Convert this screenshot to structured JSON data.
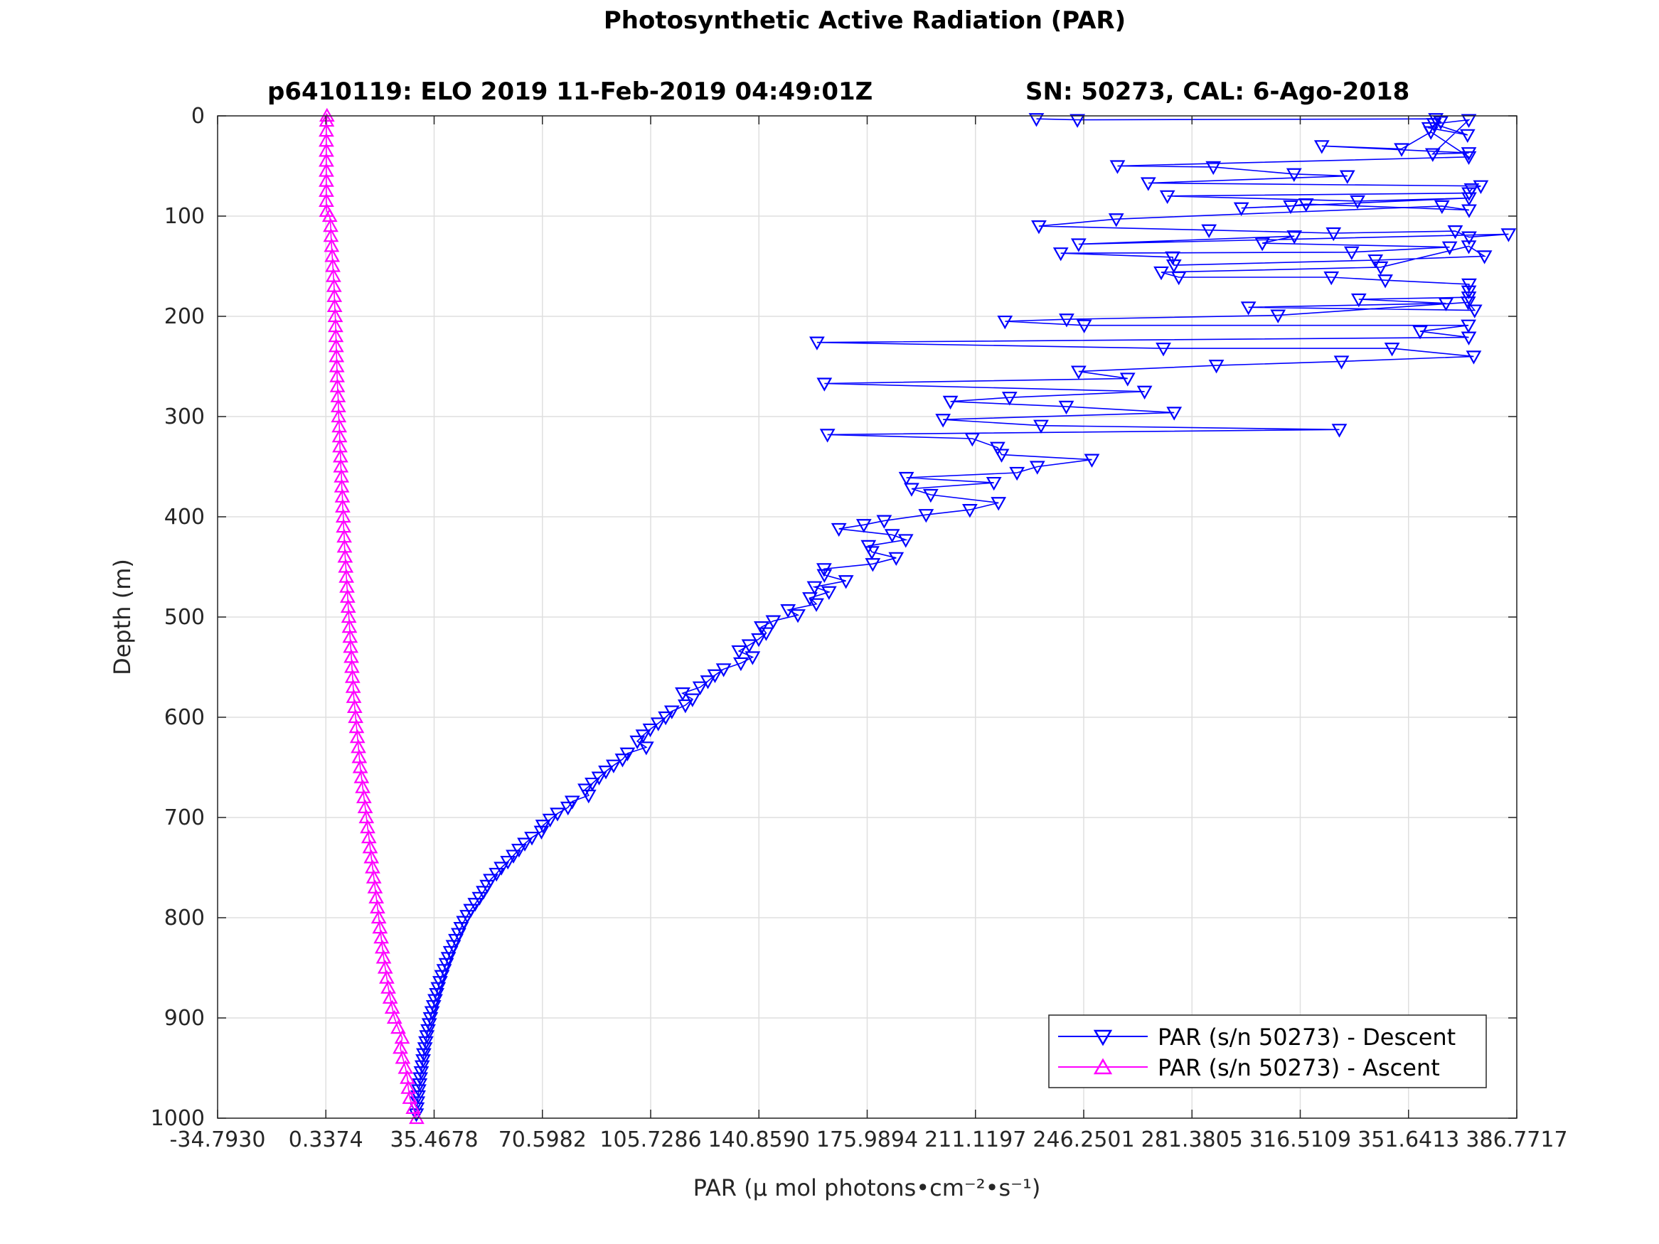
{
  "figure": {
    "title": "Photosynthetic Active Radiation (PAR)",
    "subtitle_left": "p6410119: ELO 2019 11-Feb-2019 04:49:01Z",
    "subtitle_right": "SN: 50273, CAL: 6-Ago-2018"
  },
  "chart_data": {
    "type": "line",
    "title": "Photosynthetic Active Radiation (PAR)",
    "subtitle": "p6410119: ELO 2019 11-Feb-2019 04:49:01Z        SN: 50273, CAL: 6-Ago-2018",
    "xlabel": "PAR (μ mol photons•cm⁻²•s⁻¹)",
    "ylabel": "Depth (m)",
    "xlim": [
      -34.793,
      386.7717
    ],
    "ylim": [
      0,
      1000
    ],
    "y_reversed": true,
    "grid": true,
    "legend_position": "bottom-right",
    "x_ticks": [
      "-34.7930",
      "0.3374",
      "35.4678",
      "70.5982",
      "105.7286",
      "140.8590",
      "175.9894",
      "211.1197",
      "246.2501",
      "281.3805",
      "316.5109",
      "351.6413",
      "386.7717"
    ],
    "x_tick_values": [
      -34.793,
      0.3374,
      35.4678,
      70.5982,
      105.7286,
      140.859,
      175.9894,
      211.1197,
      246.2501,
      281.3805,
      316.5109,
      351.6413,
      386.7717
    ],
    "y_ticks": [
      "0",
      "100",
      "200",
      "300",
      "400",
      "500",
      "600",
      "700",
      "800",
      "900",
      "1000"
    ],
    "y_tick_values": [
      0,
      100,
      200,
      300,
      400,
      500,
      600,
      700,
      800,
      900,
      1000
    ],
    "series": [
      {
        "name": "PAR (s/n 50273) - Descent",
        "color": "#0000ff",
        "marker": "triangle-down",
        "points": [
          [
            230.9,
            3
          ],
          [
            244.2,
            4
          ],
          [
            360.5,
            3
          ],
          [
            362.1,
            6
          ],
          [
            358.3,
            12
          ],
          [
            370.8,
            19
          ],
          [
            359.9,
            8
          ],
          [
            371.2,
            4
          ],
          [
            359.5,
            38
          ],
          [
            371.2,
            37
          ],
          [
            323.5,
            30
          ],
          [
            349.4,
            33
          ],
          [
            358.9,
            16
          ],
          [
            371.2,
            41
          ],
          [
            257.2,
            50
          ],
          [
            288.3,
            51
          ],
          [
            314.5,
            58
          ],
          [
            331.8,
            60
          ],
          [
            267.2,
            67
          ],
          [
            375.1,
            70
          ],
          [
            372.1,
            73
          ],
          [
            371.3,
            77
          ],
          [
            273.4,
            80
          ],
          [
            335.1,
            85
          ],
          [
            371.3,
            82
          ],
          [
            297.4,
            92
          ],
          [
            313.4,
            90
          ],
          [
            318.4,
            88
          ],
          [
            371.3,
            94
          ],
          [
            362.5,
            90
          ],
          [
            256.8,
            103
          ],
          [
            231.7,
            110
          ],
          [
            286.9,
            114
          ],
          [
            327.3,
            117
          ],
          [
            366.8,
            115
          ],
          [
            371.3,
            121
          ],
          [
            384.1,
            118
          ],
          [
            244.6,
            128
          ],
          [
            314.6,
            120
          ],
          [
            304.2,
            127
          ],
          [
            365.0,
            131
          ],
          [
            333.2,
            136
          ],
          [
            238.8,
            137
          ],
          [
            275.1,
            141
          ],
          [
            275.5,
            149
          ],
          [
            340.9,
            144
          ],
          [
            376.3,
            140
          ],
          [
            371.2,
            130
          ],
          [
            342.6,
            151
          ],
          [
            271.4,
            156
          ],
          [
            277.1,
            161
          ],
          [
            326.6,
            161
          ],
          [
            344.1,
            164
          ],
          [
            371.3,
            168
          ],
          [
            371.2,
            175
          ],
          [
            371.2,
            181
          ],
          [
            335.5,
            183
          ],
          [
            363.8,
            187
          ],
          [
            299.7,
            191
          ],
          [
            373.1,
            194
          ],
          [
            371.0,
            186
          ],
          [
            309.3,
            199
          ],
          [
            240.7,
            203
          ],
          [
            220.7,
            205
          ],
          [
            246.4,
            209
          ],
          [
            371.1,
            209
          ],
          [
            355.4,
            215
          ],
          [
            371.2,
            221
          ],
          [
            159.7,
            226
          ],
          [
            272.1,
            232
          ],
          [
            346.3,
            232
          ],
          [
            372.8,
            240
          ],
          [
            329.9,
            245
          ],
          [
            289.3,
            249
          ],
          [
            244.6,
            255
          ],
          [
            260.5,
            262
          ],
          [
            162.1,
            267
          ],
          [
            266.0,
            275
          ],
          [
            222.2,
            281
          ],
          [
            203.0,
            285
          ],
          [
            240.6,
            290
          ],
          [
            275.6,
            296
          ],
          [
            200.6,
            303
          ],
          [
            232.4,
            309
          ],
          [
            329.2,
            313
          ],
          [
            163.1,
            318
          ],
          [
            210.1,
            322
          ],
          [
            218.3,
            331
          ],
          [
            219.6,
            338
          ],
          [
            248.9,
            343
          ],
          [
            231.2,
            350
          ],
          [
            224.6,
            356
          ],
          [
            188.7,
            361
          ],
          [
            217.1,
            366
          ],
          [
            190.4,
            372
          ],
          [
            196.6,
            378
          ],
          [
            218.6,
            386
          ],
          [
            209.3,
            393
          ],
          [
            195.1,
            398
          ],
          [
            181.5,
            404
          ],
          [
            174.9,
            408
          ],
          [
            166.8,
            412
          ],
          [
            184.1,
            418
          ],
          [
            188.5,
            423
          ],
          [
            176.4,
            429
          ],
          [
            177.5,
            435
          ],
          [
            185.4,
            441
          ],
          [
            177.8,
            447
          ],
          [
            162.0,
            452
          ],
          [
            162.1,
            458
          ],
          [
            169.1,
            464
          ],
          [
            158.9,
            470
          ],
          [
            163.6,
            475
          ],
          [
            157.4,
            481
          ],
          [
            159.5,
            487
          ],
          [
            150.3,
            493
          ],
          [
            153.5,
            498
          ],
          [
            145.5,
            504
          ],
          [
            141.7,
            510
          ],
          [
            143.2,
            516
          ],
          [
            140.8,
            522
          ],
          [
            137.7,
            528
          ],
          [
            134.4,
            534
          ],
          [
            138.8,
            540
          ],
          [
            135.0,
            546
          ],
          [
            129.4,
            552
          ],
          [
            126.6,
            558
          ],
          [
            124.3,
            564
          ],
          [
            121.8,
            570
          ],
          [
            116.1,
            576
          ],
          [
            119.3,
            582
          ],
          [
            117.0,
            588
          ],
          [
            112.6,
            594
          ],
          [
            110.6,
            600
          ],
          [
            108.2,
            606
          ],
          [
            105.6,
            612
          ],
          [
            103.3,
            618
          ],
          [
            101.4,
            624
          ],
          [
            104.3,
            630
          ],
          [
            98.2,
            636
          ],
          [
            96.6,
            642
          ],
          [
            93.7,
            648
          ],
          [
            91.2,
            654
          ],
          [
            89.0,
            660
          ],
          [
            86.8,
            666
          ],
          [
            84.5,
            672
          ],
          [
            85.6,
            678
          ],
          [
            80.3,
            684
          ],
          [
            78.9,
            690
          ],
          [
            75.5,
            696
          ],
          [
            73.1,
            702
          ],
          [
            70.8,
            708
          ],
          [
            70.3,
            714
          ],
          [
            67.2,
            720
          ],
          [
            64.9,
            726
          ],
          [
            63.0,
            732
          ],
          [
            61.2,
            738
          ],
          [
            59.4,
            744
          ],
          [
            57.3,
            750
          ],
          [
            55.7,
            756
          ],
          [
            53.8,
            762
          ],
          [
            52.7,
            768
          ],
          [
            51.5,
            774
          ],
          [
            50.2,
            780
          ],
          [
            48.8,
            786
          ],
          [
            47.4,
            792
          ],
          [
            46.2,
            798
          ],
          [
            45.1,
            804
          ],
          [
            44.2,
            810
          ],
          [
            43.4,
            816
          ],
          [
            42.5,
            822
          ],
          [
            41.7,
            828
          ],
          [
            40.8,
            834
          ],
          [
            40.1,
            840
          ],
          [
            39.4,
            846
          ],
          [
            38.7,
            852
          ],
          [
            38.0,
            858
          ],
          [
            37.4,
            864
          ],
          [
            36.8,
            870
          ],
          [
            36.3,
            876
          ],
          [
            35.8,
            882
          ],
          [
            35.3,
            888
          ],
          [
            34.8,
            894
          ],
          [
            34.3,
            900
          ],
          [
            33.9,
            906
          ],
          [
            33.5,
            912
          ],
          [
            33.1,
            918
          ],
          [
            32.8,
            924
          ],
          [
            32.5,
            930
          ],
          [
            32.1,
            936
          ],
          [
            31.9,
            942
          ],
          [
            31.6,
            948
          ],
          [
            31.3,
            954
          ],
          [
            31.0,
            960
          ],
          [
            30.8,
            966
          ],
          [
            30.5,
            972
          ],
          [
            30.3,
            978
          ],
          [
            30.1,
            984
          ],
          [
            29.9,
            990
          ],
          [
            29.7,
            996
          ]
        ]
      },
      {
        "name": "PAR (s/n 50273) - Ascent",
        "color": "#ff00ff",
        "marker": "triangle-up",
        "points": [
          [
            29.8,
            1000
          ],
          [
            28.7,
            990
          ],
          [
            27.6,
            980
          ],
          [
            27.1,
            970
          ],
          [
            26.8,
            960
          ],
          [
            26.2,
            950
          ],
          [
            25.3,
            940
          ],
          [
            24.5,
            930
          ],
          [
            25.1,
            920
          ],
          [
            23.8,
            910
          ],
          [
            22.6,
            900
          ],
          [
            21.9,
            890
          ],
          [
            21.2,
            880
          ],
          [
            20.6,
            870
          ],
          [
            20.1,
            860
          ],
          [
            19.6,
            850
          ],
          [
            19.1,
            840
          ],
          [
            18.7,
            830
          ],
          [
            18.3,
            820
          ],
          [
            17.9,
            810
          ],
          [
            17.5,
            800
          ],
          [
            17.1,
            790
          ],
          [
            16.7,
            780
          ],
          [
            16.3,
            770
          ],
          [
            15.9,
            760
          ],
          [
            15.5,
            750
          ],
          [
            15.1,
            740
          ],
          [
            14.7,
            730
          ],
          [
            14.3,
            720
          ],
          [
            13.9,
            710
          ],
          [
            13.5,
            700
          ],
          [
            13.1,
            690
          ],
          [
            12.7,
            680
          ],
          [
            12.3,
            670
          ],
          [
            11.9,
            660
          ],
          [
            11.5,
            650
          ],
          [
            11.2,
            640
          ],
          [
            10.9,
            630
          ],
          [
            10.6,
            620
          ],
          [
            10.3,
            610
          ],
          [
            10.0,
            600
          ],
          [
            9.7,
            590
          ],
          [
            9.4,
            580
          ],
          [
            9.2,
            570
          ],
          [
            9.0,
            560
          ],
          [
            8.8,
            550
          ],
          [
            8.6,
            540
          ],
          [
            8.4,
            530
          ],
          [
            8.2,
            520
          ],
          [
            8.0,
            510
          ],
          [
            7.8,
            500
          ],
          [
            7.6,
            490
          ],
          [
            7.4,
            480
          ],
          [
            7.2,
            470
          ],
          [
            7.0,
            460
          ],
          [
            6.8,
            450
          ],
          [
            6.6,
            440
          ],
          [
            6.4,
            430
          ],
          [
            6.3,
            420
          ],
          [
            6.1,
            410
          ],
          [
            6.0,
            400
          ],
          [
            5.8,
            390
          ],
          [
            5.7,
            380
          ],
          [
            5.5,
            370
          ],
          [
            5.4,
            360
          ],
          [
            5.2,
            350
          ],
          [
            5.1,
            340
          ],
          [
            4.9,
            330
          ],
          [
            4.8,
            320
          ],
          [
            4.7,
            310
          ],
          [
            4.5,
            300
          ],
          [
            4.4,
            290
          ],
          [
            4.3,
            280
          ],
          [
            4.1,
            270
          ],
          [
            4.0,
            260
          ],
          [
            3.9,
            250
          ],
          [
            3.8,
            240
          ],
          [
            3.7,
            230
          ],
          [
            3.6,
            220
          ],
          [
            3.5,
            210
          ],
          [
            3.4,
            200
          ],
          [
            3.2,
            190
          ],
          [
            3.1,
            180
          ],
          [
            3.0,
            170
          ],
          [
            2.8,
            160
          ],
          [
            2.6,
            150
          ],
          [
            2.4,
            140
          ],
          [
            2.2,
            130
          ],
          [
            2.0,
            120
          ],
          [
            1.9,
            110
          ],
          [
            1.6,
            100
          ],
          [
            0.6,
            95
          ],
          [
            0.5,
            85
          ],
          [
            0.5,
            75
          ],
          [
            0.5,
            65
          ],
          [
            0.5,
            55
          ],
          [
            0.5,
            45
          ],
          [
            0.5,
            35
          ],
          [
            0.5,
            25
          ],
          [
            0.5,
            15
          ],
          [
            0.6,
            5
          ],
          [
            0.7,
            0
          ]
        ]
      }
    ]
  }
}
